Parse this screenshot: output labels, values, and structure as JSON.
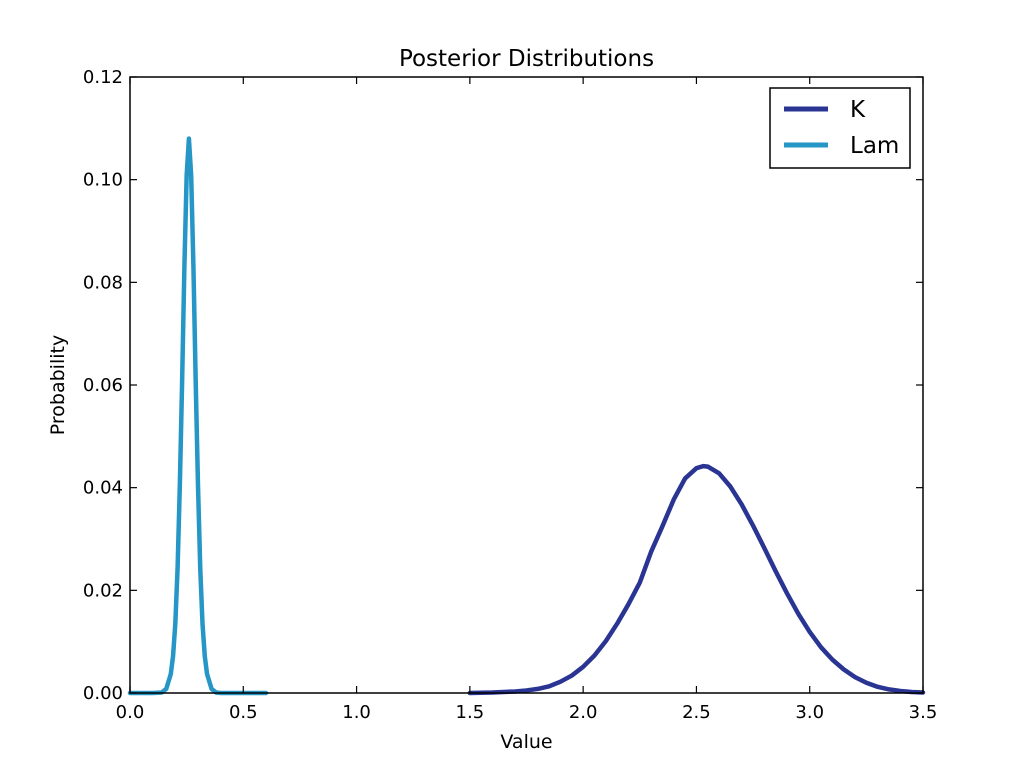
{
  "chart_data": {
    "type": "line",
    "title": "Posterior Distributions",
    "xlabel": "Value",
    "ylabel": "Probability",
    "xlim": [
      0.0,
      3.5
    ],
    "ylim": [
      0.0,
      0.12
    ],
    "xticks": [
      "0.0",
      "0.5",
      "1.0",
      "1.5",
      "2.0",
      "2.5",
      "3.0",
      "3.5"
    ],
    "yticks": [
      "0.00",
      "0.02",
      "0.04",
      "0.06",
      "0.08",
      "0.10",
      "0.12"
    ],
    "xtick_values": [
      0.0,
      0.5,
      1.0,
      1.5,
      2.0,
      2.5,
      3.0,
      3.5
    ],
    "ytick_values": [
      0.0,
      0.02,
      0.04,
      0.06,
      0.08,
      0.1,
      0.12
    ],
    "grid": false,
    "legend_position": "top-right",
    "series": [
      {
        "name": "K",
        "color": "#2a3593",
        "x": [
          1.5,
          1.6,
          1.7,
          1.75,
          1.8,
          1.85,
          1.9,
          1.95,
          2.0,
          2.05,
          2.1,
          2.15,
          2.2,
          2.25,
          2.3,
          2.35,
          2.4,
          2.45,
          2.5,
          2.53,
          2.55,
          2.6,
          2.65,
          2.7,
          2.75,
          2.8,
          2.85,
          2.9,
          2.95,
          3.0,
          3.05,
          3.1,
          3.15,
          3.2,
          3.25,
          3.3,
          3.35,
          3.4,
          3.45,
          3.5
        ],
        "values": [
          0.0,
          0.0001,
          0.0003,
          0.0005,
          0.0008,
          0.0013,
          0.0022,
          0.0034,
          0.0051,
          0.0073,
          0.0101,
          0.0135,
          0.0173,
          0.0215,
          0.0275,
          0.0325,
          0.0377,
          0.0418,
          0.0438,
          0.0442,
          0.0441,
          0.0428,
          0.0402,
          0.0367,
          0.0326,
          0.0282,
          0.0237,
          0.0194,
          0.0154,
          0.0119,
          0.0089,
          0.0065,
          0.0046,
          0.0031,
          0.002,
          0.0012,
          0.0007,
          0.0004,
          0.0002,
          0.0001
        ]
      },
      {
        "name": "Lam",
        "color": "#2596c5",
        "x": [
          0.0,
          0.05,
          0.1,
          0.14,
          0.16,
          0.18,
          0.19,
          0.2,
          0.21,
          0.22,
          0.23,
          0.24,
          0.25,
          0.26,
          0.27,
          0.28,
          0.29,
          0.3,
          0.31,
          0.32,
          0.33,
          0.34,
          0.36,
          0.38,
          0.4,
          0.45,
          0.5,
          0.6
        ],
        "values": [
          0.0,
          0.0,
          0.0,
          0.0001,
          0.0008,
          0.0037,
          0.0072,
          0.0135,
          0.0243,
          0.0406,
          0.0606,
          0.0829,
          0.1008,
          0.108,
          0.1008,
          0.0829,
          0.0606,
          0.0406,
          0.0243,
          0.0135,
          0.0072,
          0.0037,
          0.0008,
          0.0001,
          0.0,
          0.0,
          0.0,
          0.0
        ]
      }
    ]
  }
}
